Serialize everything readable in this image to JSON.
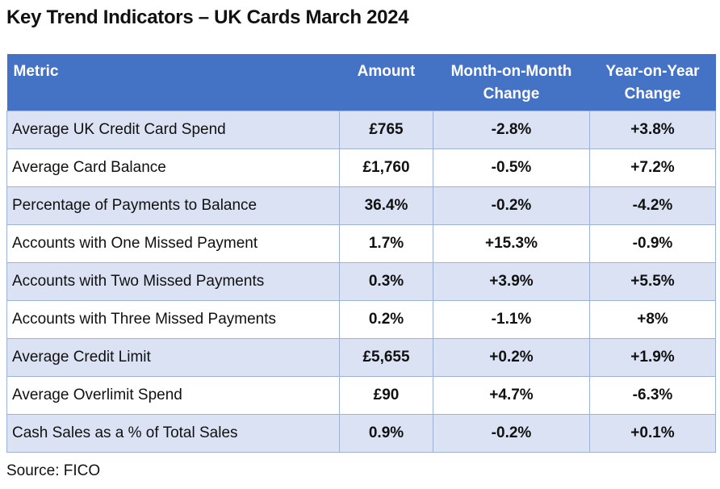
{
  "title": "Key Trend Indicators – UK Cards March 2024",
  "source": "Source: FICO",
  "chart_data": {
    "type": "table",
    "columns": [
      {
        "label_line1": "Metric",
        "label_line2": ""
      },
      {
        "label_line1": "Amount",
        "label_line2": ""
      },
      {
        "label_line1": "Month-on-Month",
        "label_line2": "Change"
      },
      {
        "label_line1": "Year-on-Year",
        "label_line2": "Change"
      }
    ],
    "rows": [
      {
        "metric": "Average UK Credit Card Spend",
        "amount": "£765",
        "mom": "-2.8%",
        "yoy": "+3.8%"
      },
      {
        "metric": "Average Card Balance",
        "amount": "£1,760",
        "mom": "-0.5%",
        "yoy": "+7.2%"
      },
      {
        "metric": "Percentage of Payments to Balance",
        "amount": "36.4%",
        "mom": "-0.2%",
        "yoy": "-4.2%"
      },
      {
        "metric": "Accounts with One Missed Payment",
        "amount": "1.7%",
        "mom": "+15.3%",
        "yoy": "-0.9%"
      },
      {
        "metric": "Accounts with Two Missed Payments",
        "amount": "0.3%",
        "mom": "+3.9%",
        "yoy": "+5.5%"
      },
      {
        "metric": "Accounts with Three Missed Payments",
        "amount": "0.2%",
        "mom": "-1.1%",
        "yoy": "+8%"
      },
      {
        "metric": "Average Credit Limit",
        "amount": "£5,655",
        "mom": "+0.2%",
        "yoy": "+1.9%"
      },
      {
        "metric": "Average Overlimit Spend",
        "amount": "£90",
        "mom": "+4.7%",
        "yoy": "-6.3%"
      },
      {
        "metric": "Cash Sales as a % of Total Sales",
        "amount": "0.9%",
        "mom": "-0.2%",
        "yoy": "+0.1%"
      }
    ]
  },
  "colors": {
    "header_bg": "#4472c4",
    "stripe_bg": "#dae2f3",
    "border": "#9eb2d8"
  }
}
